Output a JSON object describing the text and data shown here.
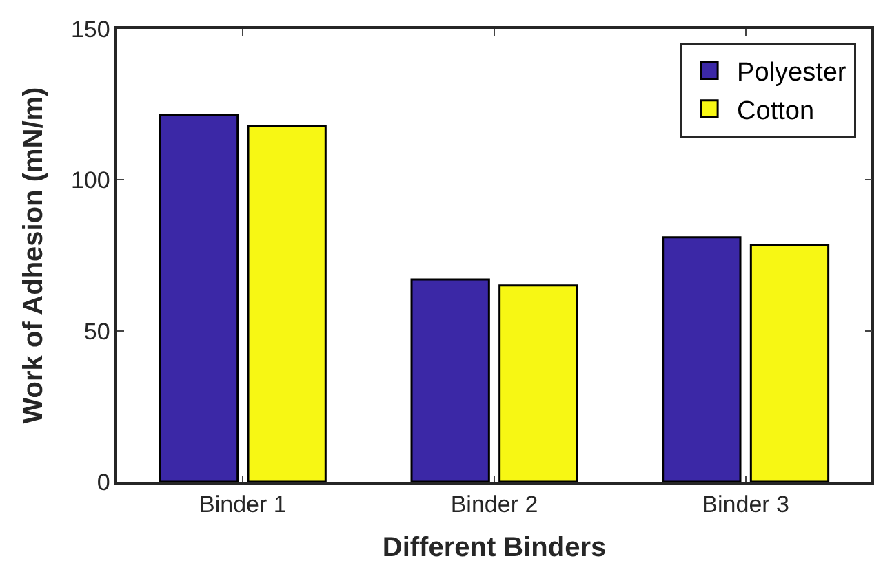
{
  "chart_data": {
    "type": "bar",
    "xlabel": "Different Binders",
    "ylabel": "Work of Adhesion (mN/m)",
    "categories": [
      "Binder 1",
      "Binder 2",
      "Binder 3"
    ],
    "series": [
      {
        "name": "Polyester",
        "color": "#3b28a6",
        "values": [
          121.5,
          67,
          81
        ]
      },
      {
        "name": "Cotton",
        "color": "#f7f714",
        "values": [
          118,
          65,
          78.5
        ]
      }
    ],
    "ylim": [
      0,
      150
    ],
    "yticks": [
      0,
      50,
      100,
      150
    ],
    "legend": "top right"
  }
}
